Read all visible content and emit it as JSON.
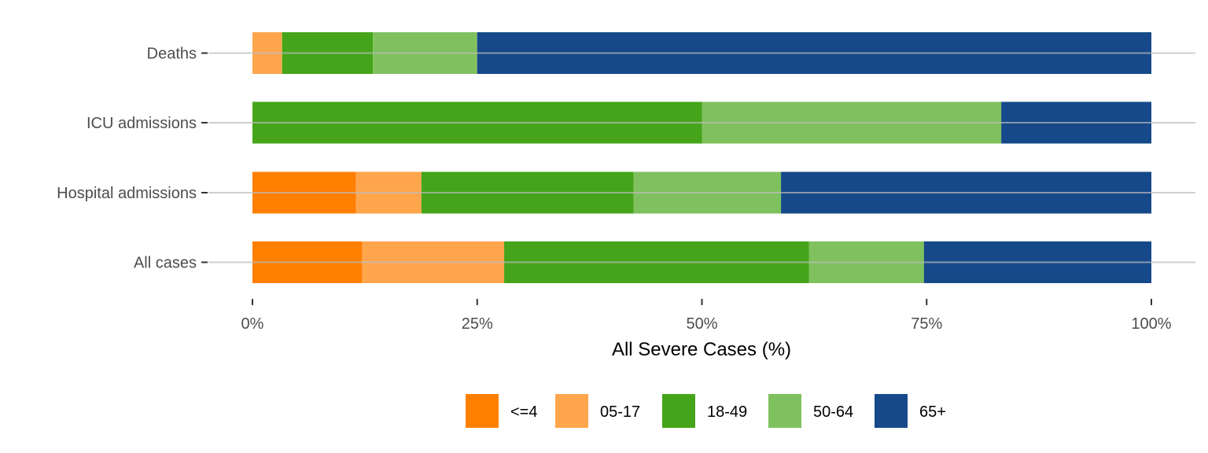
{
  "chart_data": {
    "type": "bar",
    "orientation": "horizontal",
    "stacked": "percent",
    "title": "",
    "xlabel": "All Severe Cases (%)",
    "ylabel": "",
    "xlim": [
      0,
      100
    ],
    "xticks": [
      "0%",
      "25%",
      "50%",
      "75%",
      "100%"
    ],
    "grid": true,
    "legend_position": "bottom",
    "categories": [
      "Deaths",
      "ICU admissions",
      "Hospital admissions",
      "All cases"
    ],
    "series": [
      {
        "name": "<=4",
        "color": "#FF8000",
        "values": [
          0,
          0,
          11.5,
          12.2
        ]
      },
      {
        "name": "05-17",
        "color": "#FFA64D",
        "values": [
          3.3,
          0,
          7.3,
          15.8
        ]
      },
      {
        "name": "18-49",
        "color": "#45A419",
        "values": [
          10.1,
          50,
          23.6,
          33.9
        ]
      },
      {
        "name": "50-64",
        "color": "#7FC15E",
        "values": [
          11.6,
          33.3,
          16.4,
          12.8
        ]
      },
      {
        "name": "65+",
        "color": "#15498A",
        "values": [
          75,
          16.7,
          41.2,
          25.3
        ]
      }
    ]
  }
}
